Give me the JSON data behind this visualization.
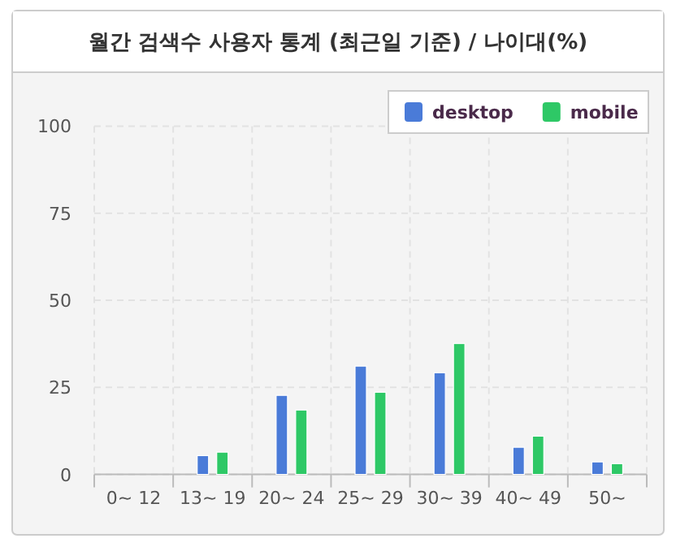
{
  "chart_data": {
    "type": "bar",
    "title": "월간 검색수 사용자 통계 (최근일 기준) / 나이대(%)",
    "categories": [
      "0~ 12",
      "13~ 19",
      "20~ 24",
      "25~ 29",
      "30~ 39",
      "40~ 49",
      "50~"
    ],
    "series": [
      {
        "name": "desktop",
        "color": "#4a7bd8",
        "values": [
          0,
          5.4,
          22.7,
          31.1,
          29.2,
          7.8,
          3.6
        ]
      },
      {
        "name": "mobile",
        "color": "#2ec866",
        "values": [
          0,
          6.4,
          18.5,
          23.6,
          37.6,
          11.0,
          3.1
        ]
      }
    ],
    "ylim": [
      0,
      100
    ],
    "yticks": [
      0,
      25,
      50,
      75,
      100
    ],
    "grid": true,
    "legend": "top right"
  }
}
